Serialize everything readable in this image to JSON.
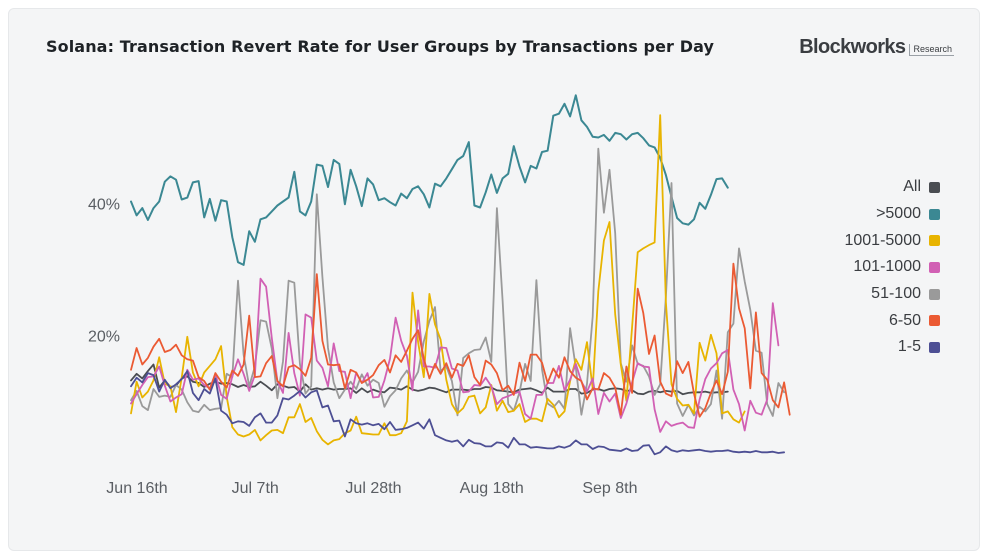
{
  "header": {
    "title": "Solana: Transaction Revert Rate for User Groups by Transactions per Day",
    "brand_name": "Blockworks",
    "brand_sub": "Research"
  },
  "legend": {
    "items": [
      {
        "label": "All",
        "color": "#4a4d52"
      },
      {
        "label": ">5000",
        "color": "#3b8893"
      },
      {
        "label": "1001-5000",
        "color": "#e8b400"
      },
      {
        "label": "101-1000",
        "color": "#d160b4"
      },
      {
        "label": "51-100",
        "color": "#9a9a9a"
      },
      {
        "label": "6-50",
        "color": "#eb5a33"
      },
      {
        "label": "1-5",
        "color": "#4d4f94"
      }
    ]
  },
  "chart_data": {
    "type": "line",
    "title": "Solana: Transaction Revert Rate for User Groups by Transactions per Day",
    "x_tick_labels": [
      "Jun 16th",
      "Jul 7th",
      "Jul 28th",
      "Aug 18th",
      "Sep 8th"
    ],
    "y_tick_labels": [
      "20%",
      "40%"
    ],
    "ylim": [
      0,
      60
    ],
    "grid": false,
    "legend_position": "right",
    "x_start": "2024-06-16",
    "series": [
      {
        "name": ">5000",
        "color": "#3b8893",
        "values": [
          40.3,
          38.2,
          39.3,
          37.5,
          39.3,
          40.3,
          43.3,
          44.1,
          43.6,
          40.6,
          40.9,
          43.2,
          43.4,
          37.9,
          40.7,
          37.4,
          40.5,
          40.3,
          34.9,
          31.1,
          30.7,
          35.8,
          34.2,
          37.6,
          37.9,
          38.8,
          39.7,
          40.3,
          40.9,
          44.8,
          38.8,
          38.2,
          40.3,
          45.9,
          45.7,
          42.5,
          46.6,
          46.0,
          39.9,
          45.1,
          42.6,
          39.6,
          43.8,
          42.9,
          40.5,
          40.8,
          40.2,
          39.7,
          41.5,
          40.8,
          42.2,
          42.6,
          41.4,
          39.4,
          43.0,
          42.6,
          43.8,
          45.2,
          46.6,
          47.2,
          49.3,
          39.7,
          39.4,
          41.7,
          44.4,
          41.6,
          43.8,
          44.5,
          48.7,
          45.6,
          43.2,
          45.7,
          45.3,
          47.8,
          48.0,
          53.3,
          53.6,
          55.1,
          53.2,
          56.4,
          52.6,
          51.6,
          50.1,
          50.0,
          50.4,
          49.5,
          50.7,
          50.5,
          49.7,
          50.5,
          50.7,
          49.9,
          48.8,
          48.5,
          46.9,
          44.3,
          41.0,
          37.8,
          37.0,
          36.8,
          37.6,
          40.1,
          39.2,
          41.3,
          43.7,
          43.8,
          42.4
        ]
      },
      {
        "name": "All",
        "color": "#4a4d52",
        "values": [
          13.2,
          14.2,
          13.5,
          14.6,
          15.6,
          12.1,
          13.2,
          12.2,
          12.4,
          13.5,
          13.8,
          13.0,
          12.8,
          12.2,
          12.7,
          13.0,
          12.7,
          12.8,
          12.6,
          12.2,
          12.5,
          12.2,
          12.3,
          13.0,
          12.4,
          11.7,
          12.6,
          12.4,
          12.1,
          12.2,
          11.5,
          12.6,
          11.8,
          12.0,
          11.8,
          12.0,
          11.8,
          11.9,
          11.9,
          12.0,
          11.3,
          12.0,
          11.4,
          11.8,
          11.5,
          11.4,
          12.1,
          12.0,
          11.8,
          12.3,
          11.8,
          11.6,
          11.8,
          12.1,
          12.0,
          11.7,
          11.4,
          11.8,
          11.8,
          11.8,
          11.7,
          11.9,
          11.9,
          12.2,
          12.1,
          11.7,
          11.6,
          11.5,
          11.4,
          11.8,
          11.9,
          12.0,
          11.7,
          11.3,
          12.1,
          11.5,
          11.5,
          11.5,
          11.9,
          11.9,
          11.2,
          11.3,
          11.8,
          11.9,
          11.6,
          11.9,
          12.0,
          11.9,
          11.6,
          11.7,
          11.2,
          11.1,
          11.5,
          11.6,
          11.4,
          11.6,
          11.5,
          11.6,
          11.1,
          11.3,
          11.4,
          11.4,
          11.5,
          11.3,
          11.4,
          11.4,
          11.5
        ]
      },
      {
        "name": "1001-5000",
        "color": "#e8b400",
        "values": [
          8.2,
          13.0,
          10.6,
          11.5,
          13.2,
          16.7,
          12.7,
          12.3,
          8.4,
          13.6,
          19.8,
          14.4,
          12.3,
          14.4,
          15.4,
          16.4,
          18.4,
          10.7,
          6.1,
          5.0,
          4.7,
          5.0,
          5.7,
          4.1,
          4.9,
          5.6,
          5.7,
          5.2,
          7.6,
          7.6,
          9.6,
          6.9,
          7.5,
          5.5,
          4.2,
          3.5,
          4.1,
          4.3,
          5.2,
          5.6,
          7.7,
          5.2,
          5.1,
          5.0,
          5.0,
          6.7,
          4.9,
          4.9,
          5.2,
          7.0,
          26.5,
          19.0,
          13.7,
          26.3,
          21.7,
          19.4,
          13.3,
          9.6,
          8.2,
          9.0,
          10.7,
          10.9,
          8.2,
          9.1,
          12.5,
          8.6,
          10.1,
          8.4,
          8.6,
          9.6,
          6.9,
          7.4,
          7.4,
          7.0,
          10.4,
          9.5,
          7.6,
          8.5,
          13.1,
          16.4,
          14.8,
          19.0,
          12.0,
          26.7,
          34.4,
          37.2,
          23.2,
          15.6,
          10.1,
          21.3,
          32.6,
          33.2,
          33.7,
          34.1,
          53.4,
          25.0,
          12.6,
          10.4,
          9.4,
          9.5,
          8.2,
          18.9,
          16.2,
          20.1,
          17.3,
          8.2,
          8.5,
          7.3,
          6.8,
          8.5
        ]
      },
      {
        "name": "101-1000",
        "color": "#d160b4",
        "values": [
          9.7,
          11.1,
          12.5,
          13.7,
          13.8,
          15.3,
          12.4,
          10.0,
          10.6,
          11.1,
          14.8,
          13.3,
          13.5,
          12.5,
          12.0,
          14.2,
          11.0,
          10.4,
          13.8,
          16.4,
          14.2,
          11.6,
          14.0,
          28.6,
          27.4,
          19.6,
          13.1,
          11.3,
          20.4,
          14.3,
          10.9,
          23.2,
          22.7,
          16.2,
          15.1,
          12.3,
          18.8,
          14.6,
          14.5,
          10.5,
          14.4,
          12.8,
          14.3,
          10.6,
          10.7,
          13.2,
          16.5,
          22.7,
          19.2,
          16.9,
          11.7,
          23.8,
          15.3,
          15.3,
          15.1,
          18.2,
          18.1,
          15.0,
          14.7,
          11.4,
          11.5,
          12.5,
          12.4,
          13.6,
          12.3,
          9.6,
          10.5,
          10.8,
          11.2,
          11.5,
          8.1,
          7.4,
          11.0,
          11.0,
          12.8,
          12.8,
          15.4,
          11.7,
          13.3,
          15.7,
          13.0,
          11.5,
          13.5,
          8.1,
          11.3,
          10.0,
          11.2,
          7.5,
          9.7,
          12.9,
          15.8,
          15.3,
          15.2,
          8.8,
          5.4,
          7.0,
          6.3,
          6.6,
          6.8,
          6.1,
          6.0,
          10.3,
          13.4,
          15.0,
          15.8,
          17.3,
          17.8,
          11.8,
          9.6,
          5.6,
          10.1,
          8.3,
          8.0,
          10.3,
          24.9,
          18.5
        ]
      },
      {
        "name": "51-100",
        "color": "#9a9a9a",
        "values": [
          10.2,
          11.6,
          9.3,
          8.7,
          11.9,
          10.7,
          10.9,
          10.7,
          12.5,
          11.8,
          9.9,
          8.6,
          8.4,
          9.5,
          8.7,
          8.9,
          9.0,
          14.2,
          13.7,
          28.3,
          17.1,
          12.3,
          15.3,
          22.3,
          22.1,
          18.0,
          10.5,
          16.1,
          28.3,
          28.0,
          15.7,
          11.2,
          12.3,
          41.4,
          28.9,
          18.1,
          12.9,
          10.5,
          11.8,
          13.0,
          11.9,
          14.1,
          12.4,
          13.3,
          12.8,
          9.2,
          10.8,
          11.7,
          13.5,
          14.7,
          12.9,
          14.5,
          19.1,
          22.2,
          24.3,
          14.6,
          15.3,
          13.1,
          7.9,
          16.6,
          17.3,
          17.8,
          17.9,
          19.7,
          16.0,
          39.3,
          25.3,
          9.6,
          8.6,
          11.4,
          15.7,
          13.1,
          28.4,
          14.9,
          9.7,
          9.1,
          10.1,
          8.9,
          21.1,
          15.1,
          8.0,
          12.7,
          22.9,
          48.3,
          38.6,
          45.1,
          35.5,
          15.8,
          13.0,
          18.5,
          15.7,
          15.4,
          13.8,
          11.0,
          12.6,
          25.9,
          43.1,
          9.7,
          7.8,
          9.5,
          7.9,
          9.2,
          8.5,
          9.6,
          14.7,
          7.4,
          20.5,
          21.8,
          33.2,
          28.2,
          23.9,
          17.7,
          17.4,
          9.6,
          7.8,
          12.8,
          11.4
        ]
      },
      {
        "name": "6-50",
        "color": "#eb5a33",
        "values": [
          14.8,
          18.1,
          15.6,
          16.6,
          18.3,
          19.5,
          17.5,
          17.8,
          18.6,
          17.0,
          16.4,
          16.2,
          13.7,
          13.1,
          11.8,
          14.3,
          13.0,
          12.1,
          14.7,
          13.9,
          15.6,
          23.0,
          13.7,
          13.8,
          15.8,
          16.9,
          13.1,
          12.3,
          15.2,
          15.5,
          14.9,
          13.9,
          16.6,
          29.3,
          19.2,
          15.6,
          15.5,
          15.6,
          12.0,
          14.8,
          14.4,
          12.8,
          13.3,
          14.0,
          15.5,
          16.3,
          14.4,
          17.0,
          16.0,
          17.7,
          19.5,
          20.8,
          16.5,
          13.5,
          15.7,
          14.2,
          15.8,
          13.6,
          15.7,
          15.4,
          17.0,
          13.7,
          12.5,
          16.2,
          15.6,
          14.3,
          11.7,
          12.4,
          11.0,
          15.9,
          13.1,
          17.1,
          17.1,
          15.9,
          12.8,
          15.0,
          13.6,
          16.7,
          14.6,
          13.6,
          13.1,
          10.3,
          12.0,
          11.8,
          14.3,
          13.6,
          12.1,
          8.0,
          15.3,
          11.3,
          27.1,
          23.4,
          17.2,
          20.0,
          13.0,
          11.2,
          10.8,
          16.1,
          14.3,
          16.0,
          11.2,
          7.7,
          9.0,
          11.3,
          13.2,
          11.1,
          14.5,
          30.9,
          24.1,
          21.1,
          12.0,
          23.5,
          14.3,
          13.3,
          10.2,
          9.1,
          12.9,
          8.0
        ]
      },
      {
        "name": "1-5",
        "color": "#4d4f94",
        "values": [
          12.3,
          13.6,
          12.9,
          14.3,
          14.0,
          11.5,
          13.3,
          12.0,
          12.6,
          13.4,
          14.6,
          11.3,
          10.2,
          11.9,
          11.2,
          13.5,
          8.6,
          8.0,
          6.7,
          7.0,
          6.9,
          6.3,
          7.6,
          8.2,
          6.8,
          6.8,
          7.9,
          10.5,
          10.3,
          10.9,
          11.6,
          10.6,
          11.4,
          11.7,
          9.1,
          9.4,
          7.0,
          7.1,
          4.7,
          7.3,
          6.7,
          6.5,
          6.7,
          6.4,
          6.6,
          5.8,
          6.9,
          5.7,
          5.8,
          6.0,
          6.4,
          6.8,
          5.9,
          7.3,
          4.9,
          4.5,
          4.1,
          3.9,
          4.1,
          3.2,
          4.2,
          3.7,
          3.6,
          3.2,
          3.2,
          3.8,
          3.7,
          3.0,
          4.5,
          3.5,
          3.5,
          3.0,
          3.1,
          3.0,
          2.9,
          2.9,
          3.2,
          3.0,
          3.3,
          4.1,
          3.5,
          3.5,
          2.8,
          3.2,
          3.1,
          2.7,
          2.6,
          2.5,
          2.9,
          2.5,
          2.6,
          3.3,
          3.4,
          2.0,
          2.3,
          3.2,
          2.6,
          2.4,
          2.6,
          2.5,
          2.6,
          2.7,
          2.5,
          2.4,
          2.5,
          2.5,
          2.6,
          2.4,
          2.3,
          2.4,
          2.3,
          2.5,
          2.3,
          2.3,
          2.4,
          2.2,
          2.3
        ]
      }
    ]
  }
}
